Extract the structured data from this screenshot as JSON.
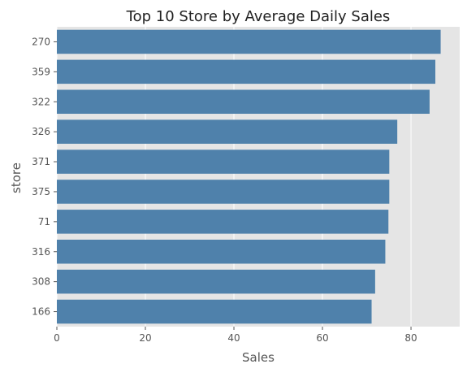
{
  "chart_data": {
    "type": "bar",
    "orientation": "horizontal",
    "title": "Top 10 Store by Average Daily Sales",
    "xlabel": "Sales",
    "ylabel": "store",
    "categories": [
      "270",
      "359",
      "322",
      "326",
      "371",
      "375",
      "71",
      "316",
      "308",
      "166"
    ],
    "values": [
      86.7,
      85.5,
      84.2,
      76.9,
      75.1,
      75.1,
      74.9,
      74.2,
      71.9,
      71.1
    ],
    "xlim": [
      0,
      91
    ],
    "xticks": [
      0,
      20,
      40,
      60,
      80
    ],
    "grid": true,
    "colors": {
      "bar": "#4f81ab",
      "plot_background": "#e5e5e5",
      "grid": "#ffffff",
      "text": "#555555",
      "title": "#222222"
    }
  }
}
